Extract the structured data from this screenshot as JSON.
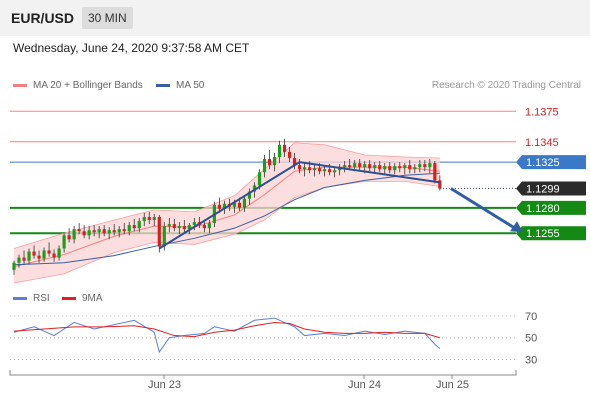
{
  "header": {
    "pair": "EUR/USD",
    "timeframe": "30 MIN"
  },
  "datetime": "Wednesday, June 24, 2020 9:37:58 AM CET",
  "legend_main": [
    {
      "label": "MA 20 + Bollinger Bands",
      "color": "#f08080"
    },
    {
      "label": "MA 50",
      "color": "#3a5fa0"
    }
  ],
  "credit": "Research © 2020 Trading Central",
  "legend_rsi": [
    {
      "label": "RSI",
      "color": "#5b7fd6"
    },
    {
      "label": "9MA",
      "color": "#e02020"
    }
  ],
  "colors": {
    "up": "#1b9e1b",
    "down": "#d42020",
    "resistance": "#ff8080",
    "support": "#138a13",
    "current": "#3a78c8",
    "last": "#2b2b2b",
    "arrow": "#2f5fa0"
  },
  "chart_data": [
    {
      "type": "candlestick",
      "ylim": [
        1.1208,
        1.1392
      ],
      "x_ticks": [
        "Jun 23",
        "Jun 24",
        "Jun 25"
      ],
      "levels": [
        {
          "value": 1.1375,
          "label": "1.1375",
          "kind": "resistance"
        },
        {
          "value": 1.1345,
          "label": "1.1345",
          "kind": "resistance"
        },
        {
          "value": 1.1325,
          "label": "1.1325",
          "kind": "current"
        },
        {
          "value": 1.1299,
          "label": "1.1299",
          "kind": "last"
        },
        {
          "value": 1.128,
          "label": "1.1280",
          "kind": "support"
        },
        {
          "value": 1.1255,
          "label": "1.1255",
          "kind": "support"
        }
      ],
      "candles": [
        [
          1.1219,
          1.1228,
          1.1214,
          1.1226
        ],
        [
          1.1226,
          1.1234,
          1.1221,
          1.1231
        ],
        [
          1.1231,
          1.1238,
          1.1224,
          1.1228
        ],
        [
          1.1228,
          1.124,
          1.1225,
          1.1237
        ],
        [
          1.1237,
          1.1243,
          1.123,
          1.1233
        ],
        [
          1.1233,
          1.1238,
          1.1226,
          1.123
        ],
        [
          1.123,
          1.1241,
          1.1227,
          1.1238
        ],
        [
          1.1238,
          1.1246,
          1.1232,
          1.1235
        ],
        [
          1.1235,
          1.1239,
          1.1227,
          1.1231
        ],
        [
          1.1231,
          1.1243,
          1.1228,
          1.124
        ],
        [
          1.124,
          1.1256,
          1.1236,
          1.1253
        ],
        [
          1.1253,
          1.126,
          1.1246,
          1.1249
        ],
        [
          1.1249,
          1.1262,
          1.1245,
          1.1259
        ],
        [
          1.1259,
          1.1265,
          1.1254,
          1.1257
        ],
        [
          1.1257,
          1.1263,
          1.125,
          1.1253
        ],
        [
          1.1253,
          1.1262,
          1.1249,
          1.1258
        ],
        [
          1.1258,
          1.1263,
          1.1252,
          1.1256
        ],
        [
          1.1256,
          1.1262,
          1.125,
          1.1259
        ],
        [
          1.1259,
          1.1263,
          1.1252,
          1.1255
        ],
        [
          1.1255,
          1.1261,
          1.1249,
          1.1258
        ],
        [
          1.1258,
          1.1264,
          1.1253,
          1.1256
        ],
        [
          1.1256,
          1.1262,
          1.1251,
          1.1259
        ],
        [
          1.1259,
          1.1265,
          1.1254,
          1.1257
        ],
        [
          1.1257,
          1.1266,
          1.1253,
          1.1263
        ],
        [
          1.1263,
          1.1269,
          1.1257,
          1.126
        ],
        [
          1.126,
          1.127,
          1.1256,
          1.1267
        ],
        [
          1.1267,
          1.1275,
          1.1262,
          1.1271
        ],
        [
          1.1271,
          1.1276,
          1.1264,
          1.1268
        ],
        [
          1.1268,
          1.1274,
          1.1262,
          1.1271
        ],
        [
          1.1271,
          1.1273,
          1.1236,
          1.1242
        ],
        [
          1.1242,
          1.1266,
          1.1238,
          1.1262
        ],
        [
          1.1262,
          1.127,
          1.1256,
          1.1264
        ],
        [
          1.1264,
          1.1269,
          1.1257,
          1.126
        ],
        [
          1.126,
          1.1266,
          1.1254,
          1.1262
        ],
        [
          1.1262,
          1.1268,
          1.1256,
          1.1259
        ],
        [
          1.1259,
          1.1265,
          1.1254,
          1.1263
        ],
        [
          1.1263,
          1.127,
          1.1258,
          1.1266
        ],
        [
          1.1266,
          1.1271,
          1.126,
          1.1263
        ],
        [
          1.1263,
          1.1266,
          1.1256,
          1.126
        ],
        [
          1.126,
          1.1268,
          1.1255,
          1.1265
        ],
        [
          1.1265,
          1.1286,
          1.1261,
          1.1283
        ],
        [
          1.1283,
          1.129,
          1.1275,
          1.1279
        ],
        [
          1.1279,
          1.1287,
          1.1274,
          1.1284
        ],
        [
          1.1284,
          1.1289,
          1.1277,
          1.1281
        ],
        [
          1.1281,
          1.1288,
          1.1275,
          1.1285
        ],
        [
          1.1285,
          1.129,
          1.1277,
          1.128
        ],
        [
          1.128,
          1.1292,
          1.1276,
          1.1289
        ],
        [
          1.1289,
          1.1299,
          1.1283,
          1.1296
        ],
        [
          1.1296,
          1.1305,
          1.129,
          1.1302
        ],
        [
          1.1302,
          1.1318,
          1.1298,
          1.1315
        ],
        [
          1.1315,
          1.1332,
          1.131,
          1.1328
        ],
        [
          1.1328,
          1.1337,
          1.1318,
          1.1322
        ],
        [
          1.1322,
          1.1334,
          1.1316,
          1.133
        ],
        [
          1.133,
          1.1346,
          1.1324,
          1.1342
        ],
        [
          1.1342,
          1.1348,
          1.133,
          1.1335
        ],
        [
          1.1335,
          1.134,
          1.1325,
          1.1329
        ],
        [
          1.1329,
          1.1334,
          1.1318,
          1.1322
        ],
        [
          1.1322,
          1.1328,
          1.1314,
          1.1318
        ],
        [
          1.1318,
          1.1324,
          1.1311,
          1.132
        ],
        [
          1.132,
          1.1326,
          1.1314,
          1.1317
        ],
        [
          1.1317,
          1.1323,
          1.1311,
          1.1319
        ],
        [
          1.1319,
          1.1324,
          1.1313,
          1.1316
        ],
        [
          1.1316,
          1.1322,
          1.1311,
          1.1318
        ],
        [
          1.1318,
          1.1323,
          1.1312,
          1.1315
        ],
        [
          1.1315,
          1.132,
          1.131,
          1.1317
        ],
        [
          1.1317,
          1.1323,
          1.1312,
          1.132
        ],
        [
          1.132,
          1.1326,
          1.1315,
          1.1322
        ],
        [
          1.1322,
          1.1328,
          1.1317,
          1.132
        ],
        [
          1.132,
          1.1327,
          1.1316,
          1.1324
        ],
        [
          1.1324,
          1.1328,
          1.1317,
          1.132
        ],
        [
          1.132,
          1.1326,
          1.1314,
          1.1323
        ],
        [
          1.1323,
          1.1327,
          1.1316,
          1.1319
        ],
        [
          1.1319,
          1.1325,
          1.1315,
          1.1322
        ],
        [
          1.1322,
          1.1326,
          1.1315,
          1.1318
        ],
        [
          1.1318,
          1.1324,
          1.1313,
          1.1321
        ],
        [
          1.1321,
          1.1325,
          1.1314,
          1.1317
        ],
        [
          1.1317,
          1.1324,
          1.1313,
          1.1321
        ],
        [
          1.1321,
          1.1325,
          1.1315,
          1.1319
        ],
        [
          1.1319,
          1.1324,
          1.1313,
          1.1322
        ],
        [
          1.1322,
          1.1327,
          1.1314,
          1.1318
        ],
        [
          1.1318,
          1.1323,
          1.1314,
          1.132
        ],
        [
          1.132,
          1.1327,
          1.1315,
          1.1323
        ],
        [
          1.1323,
          1.1327,
          1.1316,
          1.132
        ],
        [
          1.132,
          1.1328,
          1.1314,
          1.1324
        ],
        [
          1.1324,
          1.1326,
          1.1304,
          1.1307
        ],
        [
          1.1307,
          1.1312,
          1.1297,
          1.1299
        ]
      ],
      "ma20": [
        [
          0,
          1.1222
        ],
        [
          10,
          1.1234
        ],
        [
          20,
          1.1252
        ],
        [
          28,
          1.1262
        ],
        [
          36,
          1.1261
        ],
        [
          44,
          1.1273
        ],
        [
          50,
          1.1293
        ],
        [
          56,
          1.1316
        ],
        [
          62,
          1.132
        ],
        [
          70,
          1.132
        ],
        [
          78,
          1.132
        ],
        [
          85,
          1.1316
        ]
      ],
      "bb_upper": [
        [
          0,
          1.124
        ],
        [
          10,
          1.1255
        ],
        [
          20,
          1.1268
        ],
        [
          28,
          1.1278
        ],
        [
          36,
          1.1276
        ],
        [
          44,
          1.1292
        ],
        [
          50,
          1.1318
        ],
        [
          56,
          1.1344
        ],
        [
          62,
          1.1342
        ],
        [
          70,
          1.1332
        ],
        [
          78,
          1.133
        ],
        [
          85,
          1.1329
        ]
      ],
      "bb_lower": [
        [
          0,
          1.1206
        ],
        [
          10,
          1.1215
        ],
        [
          20,
          1.1236
        ],
        [
          28,
          1.1246
        ],
        [
          36,
          1.1244
        ],
        [
          44,
          1.1254
        ],
        [
          50,
          1.1268
        ],
        [
          56,
          1.129
        ],
        [
          62,
          1.13
        ],
        [
          70,
          1.1306
        ],
        [
          78,
          1.1306
        ],
        [
          85,
          1.1301
        ]
      ],
      "ma50": [
        [
          0,
          1.1224
        ],
        [
          10,
          1.1226
        ],
        [
          20,
          1.1233
        ],
        [
          28,
          1.1242
        ],
        [
          36,
          1.125
        ],
        [
          44,
          1.126
        ],
        [
          50,
          1.1272
        ],
        [
          56,
          1.1288
        ],
        [
          62,
          1.13
        ],
        [
          70,
          1.1307
        ],
        [
          78,
          1.1312
        ],
        [
          85,
          1.1314
        ]
      ],
      "trendlines": [
        {
          "from": [
            29,
            1.124
          ],
          "to": [
            57,
            1.1325
          ]
        },
        {
          "from": [
            57,
            1.1325
          ],
          "to": [
            85,
            1.1305
          ]
        }
      ],
      "projection": {
        "from": [
          86,
          1.1299
        ],
        "to": [
          100,
          1.1256
        ]
      }
    },
    {
      "type": "line",
      "title": "RSI",
      "ylim": [
        25,
        80
      ],
      "y_ticks": [
        70,
        50,
        30
      ],
      "series": [
        {
          "name": "RSI",
          "values": [
            [
              0,
              55
            ],
            [
              4,
              60
            ],
            [
              8,
              52
            ],
            [
              12,
              64
            ],
            [
              16,
              58
            ],
            [
              20,
              62
            ],
            [
              24,
              66
            ],
            [
              28,
              55
            ],
            [
              29,
              37
            ],
            [
              31,
              50
            ],
            [
              34,
              52
            ],
            [
              38,
              54
            ],
            [
              40,
              60
            ],
            [
              44,
              56
            ],
            [
              48,
              66
            ],
            [
              52,
              68
            ],
            [
              54,
              64
            ],
            [
              56,
              60
            ],
            [
              58,
              52
            ],
            [
              62,
              54
            ],
            [
              66,
              52
            ],
            [
              70,
              56
            ],
            [
              74,
              53
            ],
            [
              78,
              56
            ],
            [
              82,
              54
            ],
            [
              84,
              44
            ],
            [
              85,
              40
            ]
          ]
        },
        {
          "name": "9MA",
          "values": [
            [
              0,
              56
            ],
            [
              6,
              58
            ],
            [
              12,
              60
            ],
            [
              18,
              60
            ],
            [
              24,
              61
            ],
            [
              28,
              58
            ],
            [
              32,
              52
            ],
            [
              36,
              51
            ],
            [
              40,
              55
            ],
            [
              44,
              57
            ],
            [
              48,
              61
            ],
            [
              52,
              64
            ],
            [
              55,
              63
            ],
            [
              58,
              58
            ],
            [
              62,
              55
            ],
            [
              66,
              54
            ],
            [
              70,
              54
            ],
            [
              74,
              55
            ],
            [
              78,
              54
            ],
            [
              82,
              54
            ],
            [
              85,
              50
            ]
          ]
        }
      ]
    }
  ]
}
